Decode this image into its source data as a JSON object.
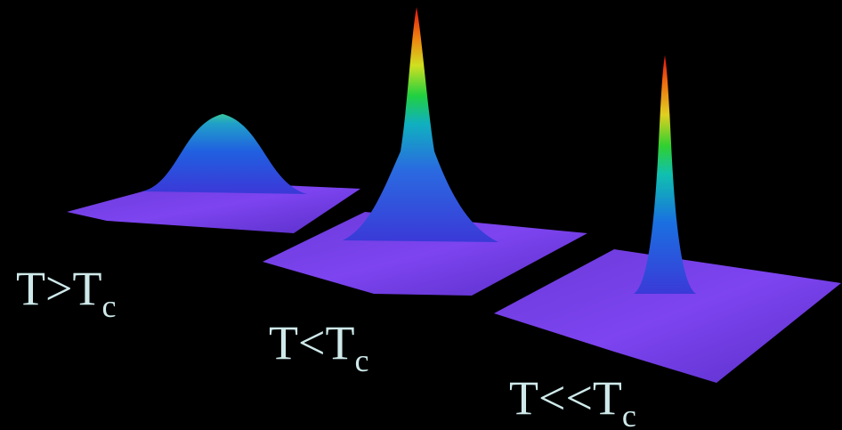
{
  "labels": [
    {
      "main": "T>T",
      "sub": "c"
    },
    {
      "main": "T<T",
      "sub": "c"
    },
    {
      "main": "T<<T",
      "sub": "c"
    }
  ]
}
